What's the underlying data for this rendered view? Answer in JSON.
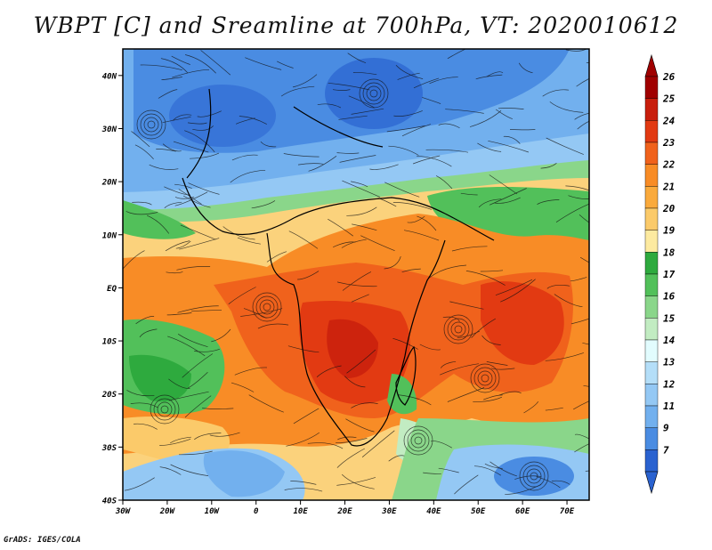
{
  "title": "WBPT [C] and Sreamline at 700hPa, VT: 2020010612",
  "credit": "GrADS: IGES/COLA",
  "map": {
    "variable": "WBPT",
    "units": "C",
    "level": "700hPa",
    "valid_time": "2020010612",
    "lon_range": [
      -30,
      75
    ],
    "lat_range": [
      -40,
      45
    ]
  },
  "axes": {
    "y_ticks": [
      {
        "label": "40N",
        "value": 40
      },
      {
        "label": "30N",
        "value": 30
      },
      {
        "label": "20N",
        "value": 20
      },
      {
        "label": "10N",
        "value": 10
      },
      {
        "label": "EQ",
        "value": 0
      },
      {
        "label": "10S",
        "value": -10
      },
      {
        "label": "20S",
        "value": -20
      },
      {
        "label": "30S",
        "value": -30
      },
      {
        "label": "40S",
        "value": -40
      }
    ],
    "x_ticks": [
      {
        "label": "30W",
        "value": -30
      },
      {
        "label": "20W",
        "value": -20
      },
      {
        "label": "10W",
        "value": -10
      },
      {
        "label": "0",
        "value": 0
      },
      {
        "label": "10E",
        "value": 10
      },
      {
        "label": "20E",
        "value": 20
      },
      {
        "label": "30E",
        "value": 30
      },
      {
        "label": "40E",
        "value": 40
      },
      {
        "label": "50E",
        "value": 50
      },
      {
        "label": "60E",
        "value": 60
      },
      {
        "label": "70E",
        "value": 70
      }
    ]
  },
  "colorbar": {
    "levels": [
      {
        "label": "26",
        "color": "#a00000"
      },
      {
        "label": "25",
        "color": "#c81e0c"
      },
      {
        "label": "24",
        "color": "#e23a12"
      },
      {
        "label": "23",
        "color": "#f0621c"
      },
      {
        "label": "22",
        "color": "#f88c26"
      },
      {
        "label": "21",
        "color": "#faaa3c"
      },
      {
        "label": "20",
        "color": "#fbca6a"
      },
      {
        "label": "19",
        "color": "#fdeaa0"
      },
      {
        "label": "18",
        "color": "#2eaa3e"
      },
      {
        "label": "17",
        "color": "#52c05a"
      },
      {
        "label": "16",
        "color": "#8ad68a"
      },
      {
        "label": "15",
        "color": "#c2ecc2"
      },
      {
        "label": "14",
        "color": "#e2fcfe"
      },
      {
        "label": "13",
        "color": "#b4def8"
      },
      {
        "label": "12",
        "color": "#94c8f4"
      },
      {
        "label": "11",
        "color": "#72b0ee"
      },
      {
        "label": "9",
        "color": "#4a8ce2"
      },
      {
        "label": "7",
        "color": "#2a62d0"
      }
    ],
    "top_cap_color": "#a00000",
    "bottom_cap_color": "#2a62d0"
  }
}
